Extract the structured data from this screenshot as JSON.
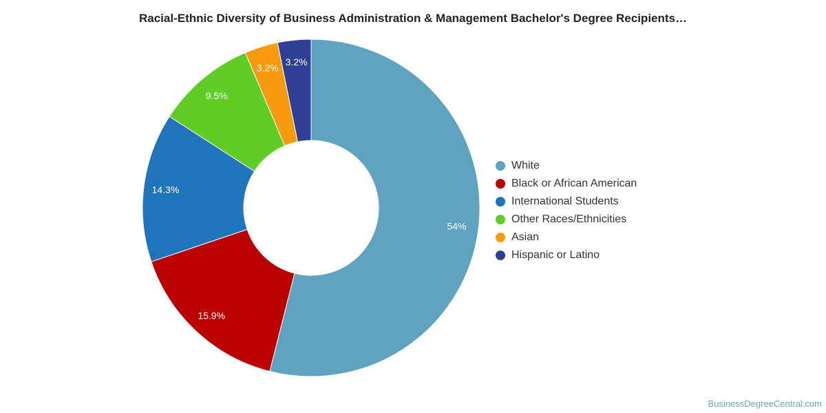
{
  "chart_data": {
    "type": "pie",
    "variant": "donut",
    "title": "Racial-Ethnic Diversity of Business Administration & Management Bachelor's Degree Recipients…",
    "slices": [
      {
        "name": "White",
        "value": 54,
        "label": "54%",
        "color": "#5fa3c1"
      },
      {
        "name": "Black or African American",
        "value": 15.9,
        "label": "15.9%",
        "color": "#bb0000"
      },
      {
        "name": "International Students",
        "value": 14.3,
        "label": "14.3%",
        "color": "#1f74bb"
      },
      {
        "name": "Other Races/Ethnicities",
        "value": 9.5,
        "label": "9.5%",
        "color": "#5fcd26"
      },
      {
        "name": "Asian",
        "value": 3.2,
        "label": "3.2%",
        "color": "#f79a0f"
      },
      {
        "name": "Hispanic or Latino",
        "value": 3.2,
        "label": "3.2%",
        "color": "#2e3f95"
      }
    ],
    "legend_position": "right"
  },
  "source": "BusinessDegreeCentral.com"
}
